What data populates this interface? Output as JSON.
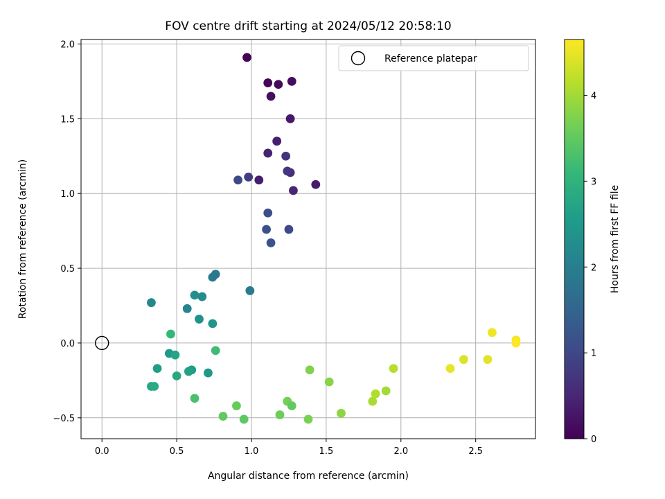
{
  "chart_data": {
    "type": "scatter",
    "title": "FOV centre drift starting at 2024/05/12 20:58:10",
    "xlabel": "Angular distance from reference (arcmin)",
    "ylabel": "Rotation from reference (arcmin)",
    "xlim": [
      -0.14,
      2.9
    ],
    "ylim": [
      -0.64,
      2.03
    ],
    "xticks": [
      0.0,
      0.5,
      1.0,
      1.5,
      2.0,
      2.5
    ],
    "xtick_labels": [
      "0.0",
      "0.5",
      "1.0",
      "1.5",
      "2.0",
      "2.5"
    ],
    "yticks": [
      -0.5,
      0.0,
      0.5,
      1.0,
      1.5,
      2.0
    ],
    "ytick_labels": [
      "−0.5",
      "0.0",
      "0.5",
      "1.0",
      "1.5",
      "2.0"
    ],
    "grid": true,
    "legend": {
      "label": "Reference platepar",
      "position": "top-right"
    },
    "reference": {
      "x": 0.0,
      "y": 0.0
    },
    "colorbar": {
      "label": "Hours from first FF file",
      "colormap": "viridis",
      "range": [
        0,
        4.65
      ],
      "ticks": [
        0,
        1,
        2,
        3,
        4
      ],
      "tick_labels": [
        "0",
        "1",
        "2",
        "3",
        "4"
      ]
    },
    "points": [
      {
        "x": 0.97,
        "y": 1.91,
        "c": 0.02
      },
      {
        "x": 1.11,
        "y": 1.74,
        "c": 0.07
      },
      {
        "x": 1.18,
        "y": 1.73,
        "c": 0.1
      },
      {
        "x": 1.27,
        "y": 1.75,
        "c": 0.14
      },
      {
        "x": 1.13,
        "y": 1.65,
        "c": 0.2
      },
      {
        "x": 1.26,
        "y": 1.5,
        "c": 0.3
      },
      {
        "x": 1.17,
        "y": 1.35,
        "c": 0.4
      },
      {
        "x": 1.11,
        "y": 1.27,
        "c": 0.45
      },
      {
        "x": 1.23,
        "y": 1.25,
        "c": 0.7
      },
      {
        "x": 1.43,
        "y": 1.06,
        "c": 0.35
      },
      {
        "x": 1.05,
        "y": 1.09,
        "c": 0.38
      },
      {
        "x": 1.28,
        "y": 1.02,
        "c": 0.48
      },
      {
        "x": 1.26,
        "y": 1.14,
        "c": 0.6
      },
      {
        "x": 1.24,
        "y": 1.15,
        "c": 0.75
      },
      {
        "x": 0.98,
        "y": 1.11,
        "c": 0.8
      },
      {
        "x": 0.91,
        "y": 1.09,
        "c": 1.0
      },
      {
        "x": 1.11,
        "y": 0.87,
        "c": 1.1
      },
      {
        "x": 1.1,
        "y": 0.76,
        "c": 1.15
      },
      {
        "x": 1.25,
        "y": 0.76,
        "c": 1.0
      },
      {
        "x": 1.13,
        "y": 0.67,
        "c": 1.2
      },
      {
        "x": 0.74,
        "y": 0.44,
        "c": 1.9
      },
      {
        "x": 0.76,
        "y": 0.46,
        "c": 1.85
      },
      {
        "x": 0.99,
        "y": 0.35,
        "c": 1.95
      },
      {
        "x": 0.33,
        "y": 0.27,
        "c": 2.2
      },
      {
        "x": 0.57,
        "y": 0.23,
        "c": 2.1
      },
      {
        "x": 0.62,
        "y": 0.32,
        "c": 2.3
      },
      {
        "x": 0.67,
        "y": 0.31,
        "c": 2.25
      },
      {
        "x": 0.65,
        "y": 0.16,
        "c": 2.35
      },
      {
        "x": 0.74,
        "y": 0.13,
        "c": 2.4
      },
      {
        "x": 0.46,
        "y": 0.06,
        "c": 3.1
      },
      {
        "x": 0.45,
        "y": -0.07,
        "c": 2.5
      },
      {
        "x": 0.49,
        "y": -0.08,
        "c": 2.7
      },
      {
        "x": 0.76,
        "y": -0.05,
        "c": 3.2
      },
      {
        "x": 0.37,
        "y": -0.17,
        "c": 2.6
      },
      {
        "x": 0.6,
        "y": -0.18,
        "c": 2.55
      },
      {
        "x": 0.58,
        "y": -0.19,
        "c": 2.65
      },
      {
        "x": 0.71,
        "y": -0.2,
        "c": 2.5
      },
      {
        "x": 0.5,
        "y": -0.22,
        "c": 2.8
      },
      {
        "x": 0.33,
        "y": -0.29,
        "c": 2.75
      },
      {
        "x": 0.35,
        "y": -0.29,
        "c": 2.85
      },
      {
        "x": 0.62,
        "y": -0.37,
        "c": 3.3
      },
      {
        "x": 0.81,
        "y": -0.49,
        "c": 3.5
      },
      {
        "x": 0.9,
        "y": -0.42,
        "c": 3.55
      },
      {
        "x": 0.95,
        "y": -0.51,
        "c": 3.45
      },
      {
        "x": 1.19,
        "y": -0.48,
        "c": 3.6
      },
      {
        "x": 1.24,
        "y": -0.39,
        "c": 3.65
      },
      {
        "x": 1.27,
        "y": -0.42,
        "c": 3.5
      },
      {
        "x": 1.38,
        "y": -0.51,
        "c": 3.7
      },
      {
        "x": 1.39,
        "y": -0.18,
        "c": 3.75
      },
      {
        "x": 1.52,
        "y": -0.26,
        "c": 3.8
      },
      {
        "x": 1.6,
        "y": -0.47,
        "c": 3.85
      },
      {
        "x": 1.81,
        "y": -0.39,
        "c": 4.05
      },
      {
        "x": 1.83,
        "y": -0.34,
        "c": 4.1
      },
      {
        "x": 1.9,
        "y": -0.32,
        "c": 4.0
      },
      {
        "x": 1.95,
        "y": -0.17,
        "c": 4.15
      },
      {
        "x": 2.33,
        "y": -0.17,
        "c": 4.5
      },
      {
        "x": 2.42,
        "y": -0.11,
        "c": 4.4
      },
      {
        "x": 2.58,
        "y": -0.11,
        "c": 4.45
      },
      {
        "x": 2.61,
        "y": 0.07,
        "c": 4.55
      },
      {
        "x": 2.77,
        "y": 0.02,
        "c": 4.6
      },
      {
        "x": 2.77,
        "y": -0.0,
        "c": 4.65
      }
    ]
  }
}
